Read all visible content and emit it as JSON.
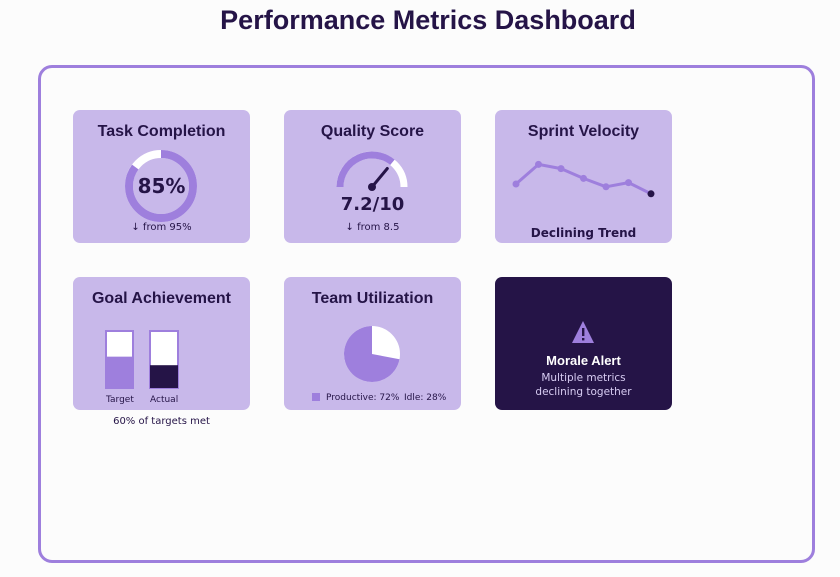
{
  "page": {
    "title": "Performance Metrics Dashboard"
  },
  "colors": {
    "card": "#c8b8ea",
    "accent": "#9e7fdd",
    "dark": "#251447",
    "light": "#ffffff"
  },
  "cards": {
    "task_completion": {
      "title": "Task Completion",
      "value": "85%",
      "percent": 85,
      "delta": "↓ from 95%"
    },
    "quality_score": {
      "title": "Quality Score",
      "value": "7.2/10",
      "score": 7.2,
      "max": 10,
      "delta": "↓ from 8.5"
    },
    "sprint_velocity": {
      "title": "Sprint Velocity",
      "caption": "Declining Trend",
      "trend_values": [
        40,
        54,
        51,
        44,
        38,
        41,
        33
      ]
    },
    "goal_achievement": {
      "title": "Goal Achievement",
      "bars": [
        {
          "label": "Target",
          "fill_fraction": 0.55
        },
        {
          "label": "Actual",
          "fill_fraction": 0.4
        }
      ],
      "note": "60% of targets met"
    },
    "team_utilization": {
      "title": "Team Utilization",
      "legend": [
        "Productive: 72%",
        "Idle: 28%"
      ],
      "productive": 72,
      "idle": 28
    },
    "morale_alert": {
      "icon": "warning-triangle-icon",
      "title": "Morale Alert",
      "line1": "Multiple metrics",
      "line2": "declining together"
    }
  }
}
